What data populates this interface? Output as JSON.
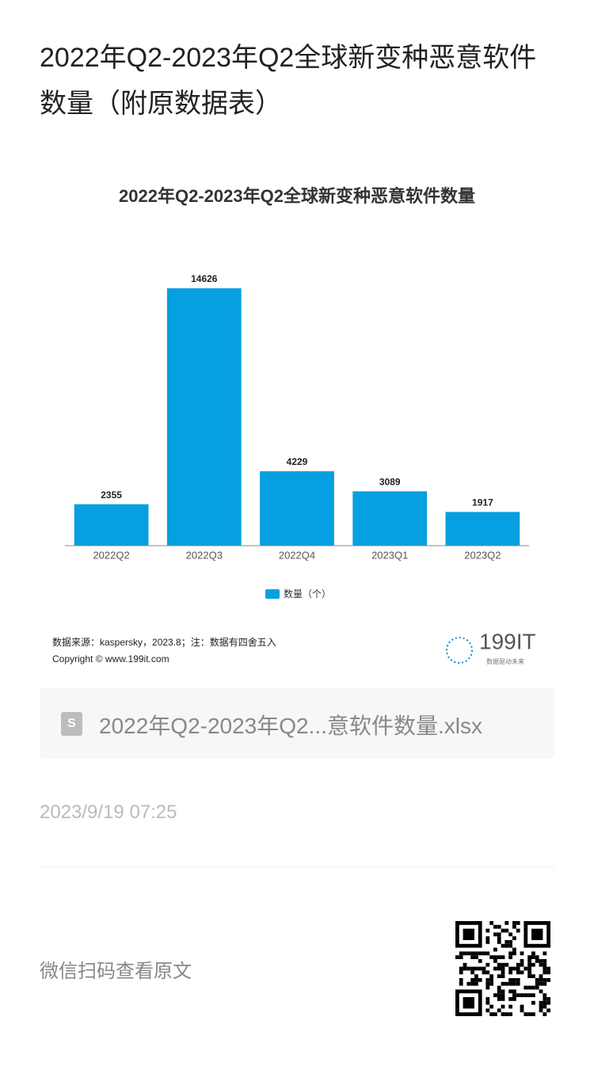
{
  "header": {
    "title": "2022年Q2-2023年Q2全球新变种恶意软件数量（附原数据表）"
  },
  "chart_data": {
    "type": "bar",
    "title": "2022年Q2-2023年Q2全球新变种恶意软件数量",
    "categories": [
      "2022Q2",
      "2022Q3",
      "2022Q4",
      "2023Q1",
      "2023Q2"
    ],
    "series": [
      {
        "name": "数量（个）",
        "color": "#069fe1",
        "values": [
          2355,
          14626,
          4229,
          3089,
          1917
        ]
      }
    ],
    "legend": "bottom"
  },
  "source": {
    "text": "数据来源：kaspersky，2023.8；注：数据有四舍五入",
    "copyright": "Copyright © www.199it.com",
    "logo": "199IT",
    "slogan": "数据驱动未来"
  },
  "attachment": {
    "filename": "2022年Q2-2023年Q2...意软件数量.xlsx",
    "icon": "S"
  },
  "date": "2023/9/19 07:25",
  "footer": {
    "text": "微信扫码查看原文"
  }
}
